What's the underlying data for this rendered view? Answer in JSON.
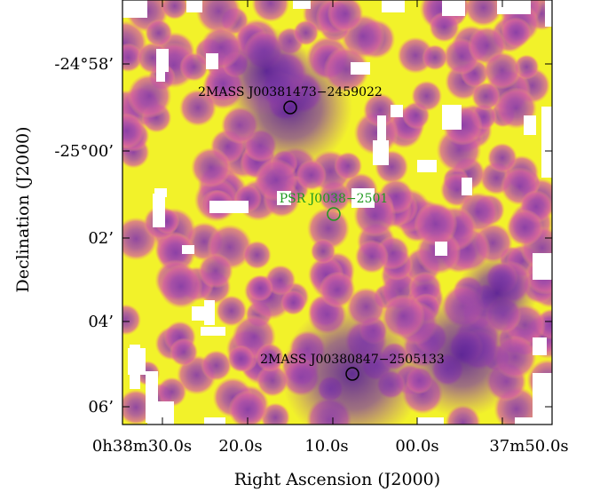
{
  "colors": {
    "background": "#f2f22a",
    "blob_outer": "#d8669a",
    "blob_mid": "#a84fa8",
    "blob_core": "#6e2fa0",
    "hole": "#ffffff",
    "frame": "#000000"
  },
  "axes": {
    "xlabel": "Right Ascension (J2000)",
    "ylabel": "Declination (J2000)",
    "x_ticks": [
      "0h38m30.0s",
      "20.0s",
      "10.0s",
      "00.0s",
      "37m50.0s"
    ],
    "y_ticks": [
      "-24°58’",
      "-25°00’",
      "02’",
      "04’",
      "06’"
    ]
  },
  "sources": [
    {
      "name": "2MASS J00381473−2459022",
      "color": "#000000"
    },
    {
      "name": "PSR J0038−2501",
      "color": "#1f9a1f"
    },
    {
      "name": "2MASS J00380847−2505133",
      "color": "#000000"
    }
  ]
}
